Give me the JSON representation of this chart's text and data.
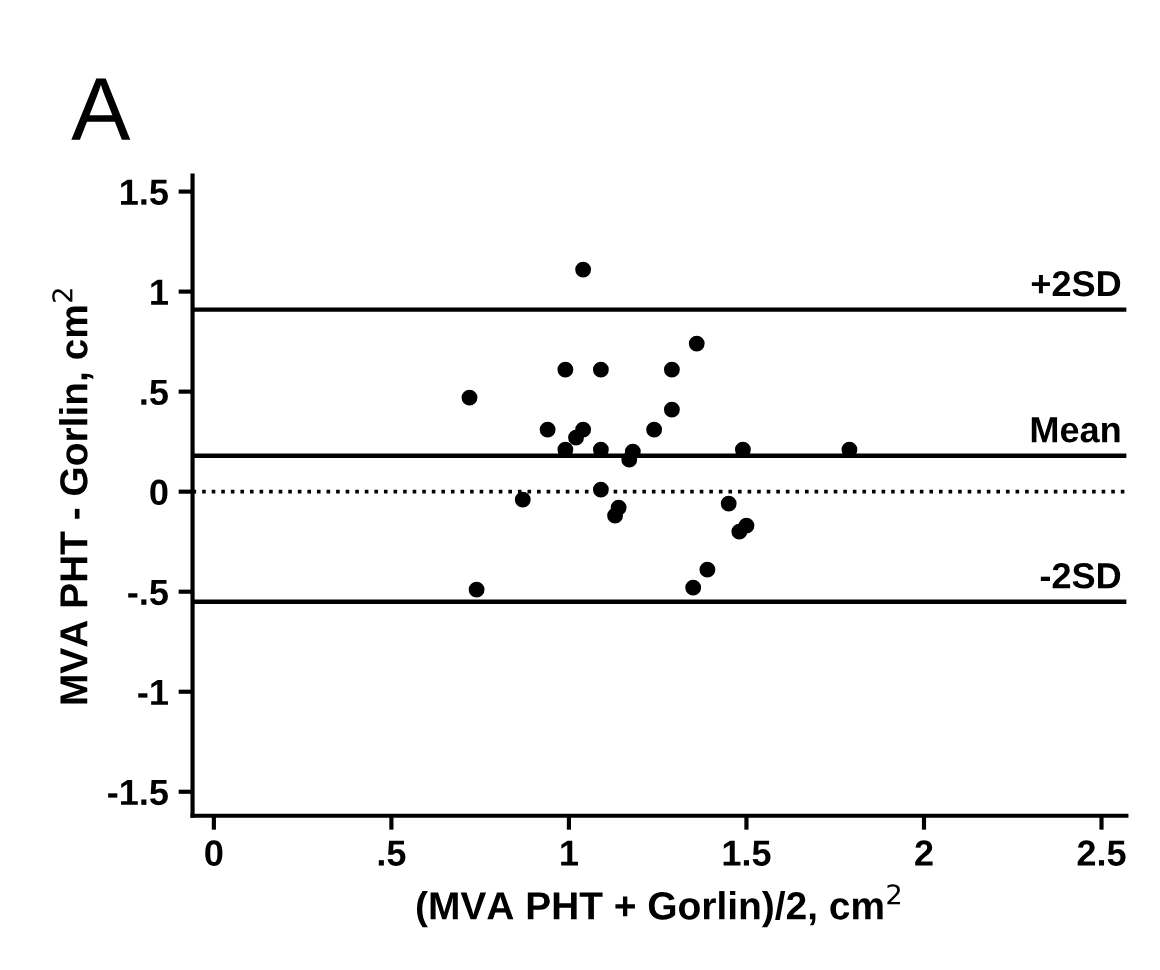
{
  "chart_data": {
    "type": "scatter",
    "title": "A",
    "xlabel": "(MVA PHT + Gorlin)/2, cm$^{2}$",
    "ylabel": "MVA PHT - Gorlin, cm$^{2}$",
    "x": [
      1.04,
      0.72,
      0.99,
      1.09,
      1.29,
      1.36,
      1.29,
      0.94,
      1.04,
      1.24,
      0.99,
      1.02,
      1.09,
      1.18,
      1.17,
      1.49,
      1.79,
      0.87,
      1.09,
      1.13,
      1.14,
      1.45,
      1.48,
      1.5,
      1.39,
      1.35,
      0.74
    ],
    "values": [
      1.11,
      0.47,
      0.61,
      0.61,
      0.61,
      0.74,
      0.41,
      0.31,
      0.31,
      0.31,
      0.21,
      0.27,
      0.21,
      0.2,
      0.16,
      0.21,
      0.21,
      -0.04,
      0.01,
      -0.12,
      -0.08,
      -0.06,
      -0.2,
      -0.17,
      -0.39,
      -0.48,
      -0.49
    ],
    "color": "#000000",
    "marker": "circle",
    "xlim": [
      -0.06,
      2.57
    ],
    "ylim": [
      -1.62,
      1.58
    ],
    "xticks": [
      0,
      {
        "value": 0.5,
        "label": ".5"
      },
      1,
      1.5,
      2,
      2.5
    ],
    "yticks": [
      {
        "value": -1.5,
        "label": "-1.5"
      },
      -1,
      {
        "value": -0.5,
        "label": "-.5"
      },
      0,
      {
        "value": 0.5,
        "label": ".5"
      },
      1,
      1.5
    ],
    "ref_lines": [
      {
        "axis": "y",
        "value": 0.91,
        "label": "+2SD",
        "line_style": "solid"
      },
      {
        "axis": "y",
        "value": 0.18,
        "label": "Mean",
        "line_style": "solid"
      },
      {
        "axis": "y",
        "value": 0,
        "line_style": "dotted"
      },
      {
        "axis": "y",
        "value": -0.55,
        "label": "-2SD",
        "line_style": "solid"
      }
    ],
    "grid": false,
    "legend": false
  }
}
